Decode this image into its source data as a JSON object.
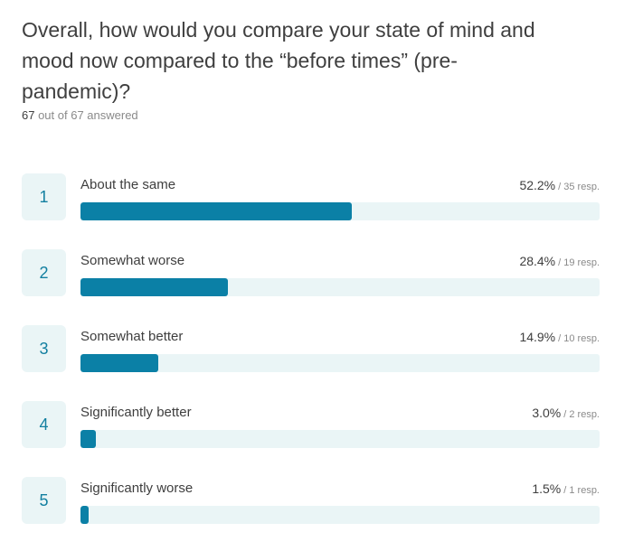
{
  "question": {
    "title": "Overall, how would you compare your state of mind and mood now compared to the “before times” (pre-pandemic)?",
    "answered_count": "67",
    "answered_rest": " out of 67 answered"
  },
  "answers": [
    {
      "rank": "1",
      "label": "About the same",
      "percent_text": "52.2%",
      "resp_text": "/ 35 resp.",
      "fraction": 0.522
    },
    {
      "rank": "2",
      "label": "Somewhat worse",
      "percent_text": "28.4%",
      "resp_text": "/ 19 resp.",
      "fraction": 0.284
    },
    {
      "rank": "3",
      "label": "Somewhat better",
      "percent_text": "14.9%",
      "resp_text": "/ 10 resp.",
      "fraction": 0.149
    },
    {
      "rank": "4",
      "label": "Significantly better",
      "percent_text": "3.0%",
      "resp_text": "/ 2 resp.",
      "fraction": 0.03
    },
    {
      "rank": "5",
      "label": "Significantly worse",
      "percent_text": "1.5%",
      "resp_text": "/ 1 resp.",
      "fraction": 0.015
    }
  ],
  "colors": {
    "accent": "#0b80a6",
    "track": "#eaf5f6",
    "rank_text": "#127fa0"
  }
}
